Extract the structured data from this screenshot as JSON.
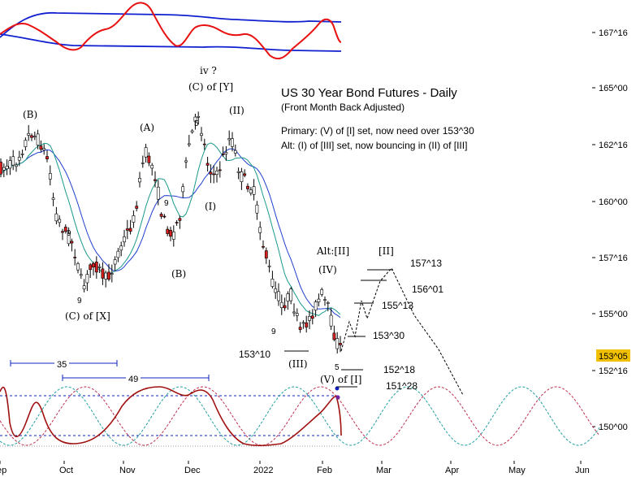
{
  "header": {
    "title": "US 30 Year Bond Futures - Daily",
    "subtitle": "(Front Month Back Adjusted)",
    "primary_note": "Primary: (V) of [I] set, now need over 153^30",
    "alt_note": "Alt: (I) of [III] set, now bouncing in (II) of [III]"
  },
  "chart_data": {
    "type": "candlestick",
    "title": "US 30 Year Bond Futures - Daily",
    "price_axis": {
      "ticks": [
        "167^16",
        "165^00",
        "162^16",
        "160^00",
        "157^16",
        "155^00",
        "152^16",
        "150^00"
      ],
      "current_price_label": "153^05",
      "current_price_color": "#f0c000"
    },
    "time_axis": {
      "months": [
        "Sep",
        "Oct",
        "Nov",
        "Dec",
        "2022",
        "Feb",
        "Mar",
        "Apr",
        "May",
        "Jun"
      ]
    },
    "moving_averages": [
      {
        "color": "#1f3fcf"
      },
      {
        "color": "#1a9a8a"
      }
    ],
    "wave_labels": [
      "(B)",
      "(A)",
      "(B)",
      "(C) of [X]",
      "iv ?",
      "(C) of [Y]",
      "(I)",
      "(II)",
      "(III)",
      "(IV)",
      "Alt:[II]",
      "[II]",
      "(V) of [I]"
    ],
    "level_labels": [
      "157^13",
      "156^01",
      "155^13",
      "153^30",
      "153^10",
      "152^18",
      "151^28"
    ],
    "count_digits": [
      "9",
      "9",
      "9",
      "5",
      "5",
      "9"
    ],
    "cycle_spans": [
      {
        "label": "35"
      },
      {
        "label": "49"
      }
    ],
    "colors": {
      "candle_down": "#d62020",
      "candle_up": "#ffffff",
      "outline": "#000000",
      "oscillator": "#e81010",
      "band": "#1020d0",
      "cycle_1": "#c03050",
      "cycle_2": "#20a0a0",
      "bottom_osc": "#a01010",
      "dashed_level": "#1020c0"
    }
  }
}
